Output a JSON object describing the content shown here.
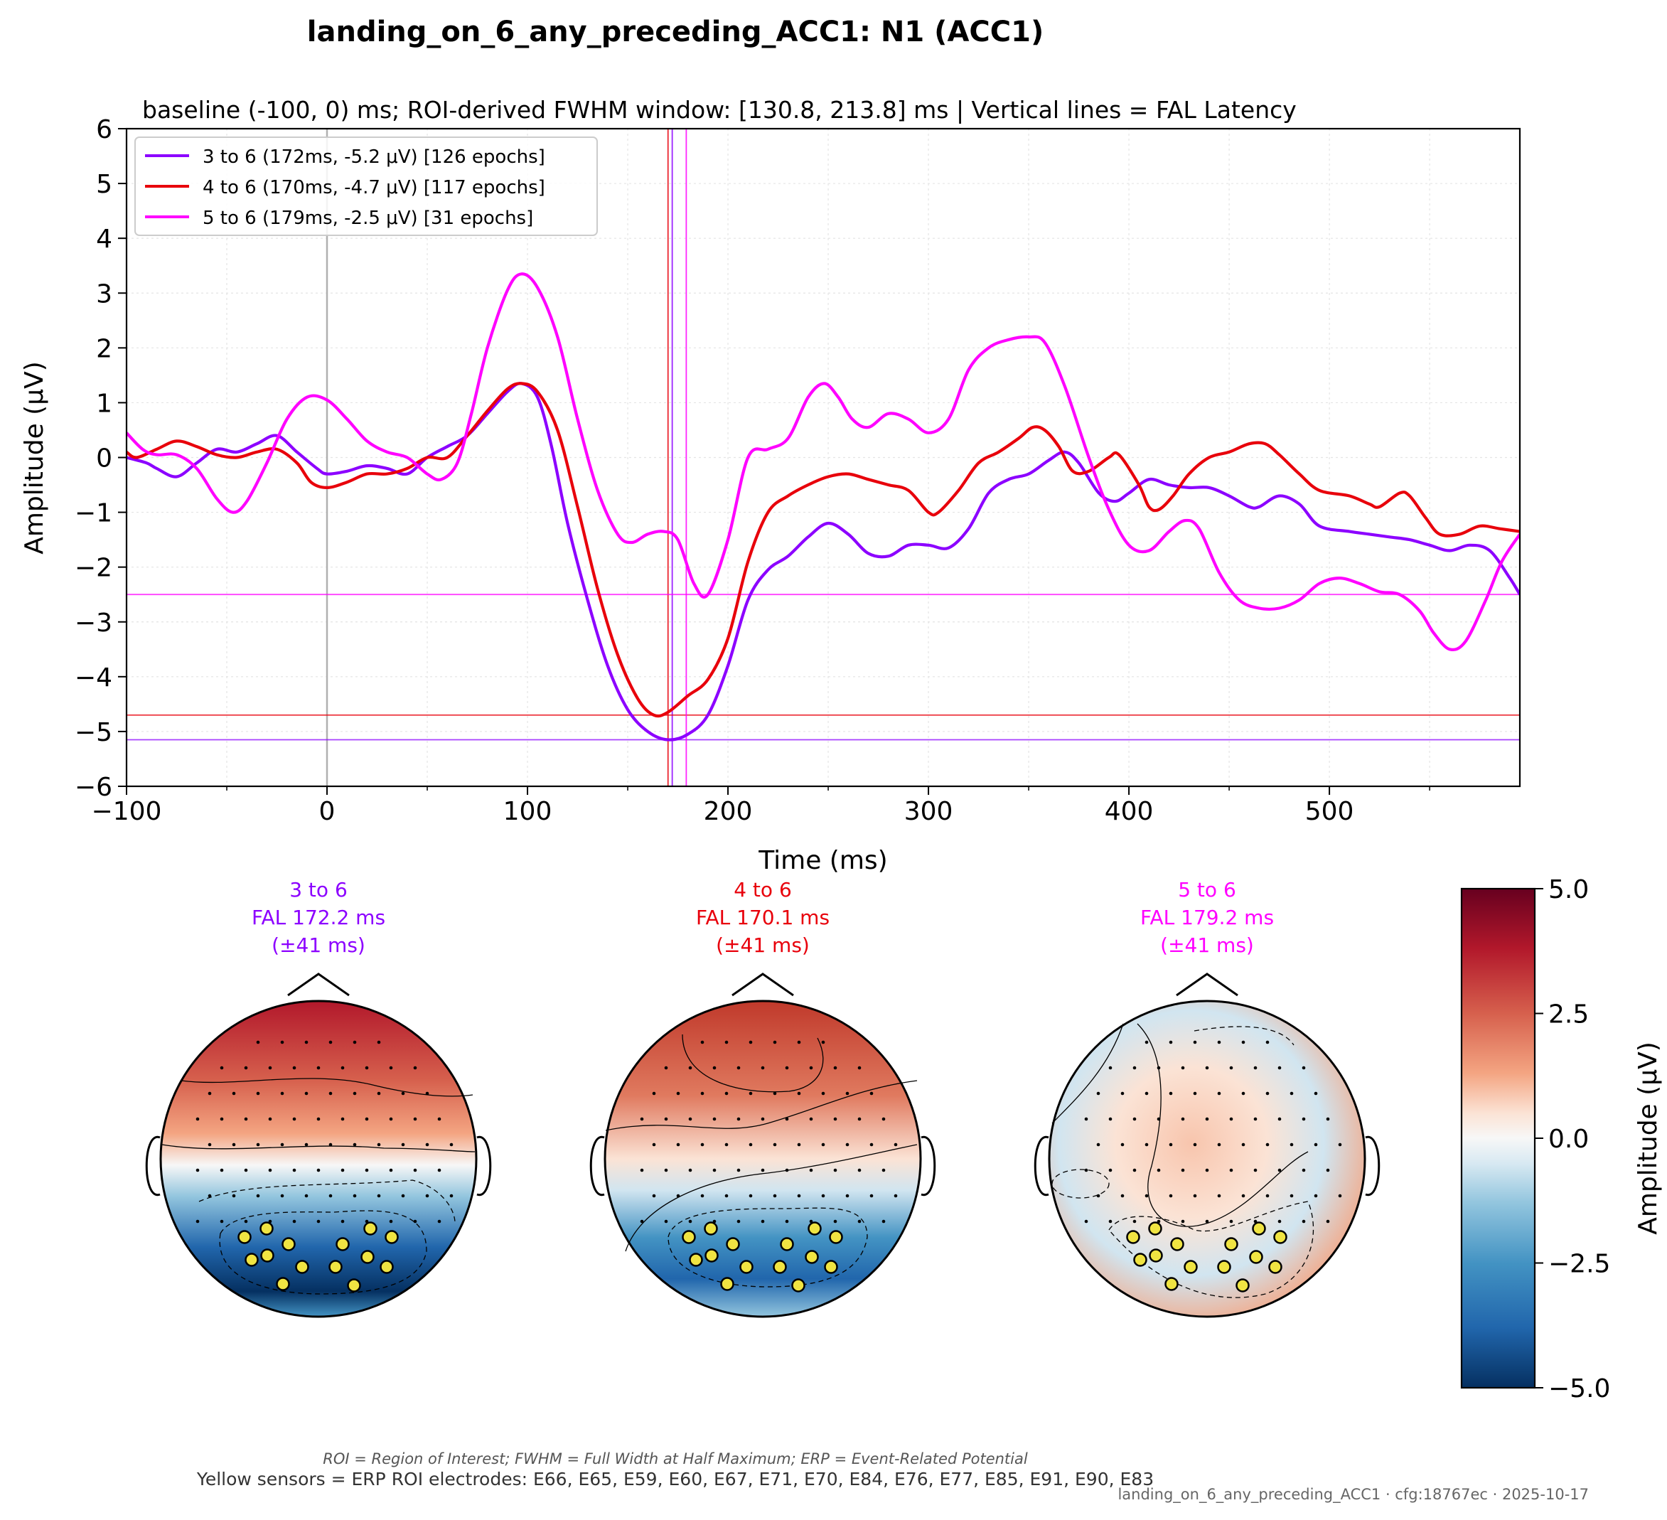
{
  "title": "landing_on_6_any_preceding_ACC1: N1 (ACC1)",
  "footnotes": {
    "definitions": "ROI = Region of Interest; FWHM = Full Width at Half Maximum; ERP = Event-Related Potential",
    "roi_electrodes": "Yellow sensors = ERP ROI electrodes: E66, E65, E59, E60, E67, E71, E70, E84, E76, E77, E85, E91, E90, E83",
    "config": "landing_on_6_any_preceding_ACC1 · cfg:18767ec · 2025-10-17"
  },
  "chart_data": [
    {
      "type": "line",
      "title": "baseline (-100, 0) ms; ROI-derived FWHM window: [130.8, 213.8] ms | Vertical lines = FAL Latency",
      "xlabel": "Time (ms)",
      "ylabel": "Amplitude (μV)",
      "xlim": [
        -100,
        595
      ],
      "ylim": [
        -6,
        6
      ],
      "xticks": [
        -100,
        0,
        100,
        200,
        300,
        400,
        500
      ],
      "yticks": [
        -6,
        -5,
        -4,
        -3,
        -2,
        -1,
        0,
        1,
        2,
        3,
        4,
        5,
        6
      ],
      "grid": true,
      "legend_position": "top-left",
      "baseline_marker_x": 0,
      "series": [
        {
          "name": "3 to 6 (172ms, -5.2 μV) [126 epochs]",
          "color": "#8c00ff",
          "fal_latency_ms": 172.2,
          "fal_amplitude": -5.15,
          "points": [
            [
              -100,
              0
            ],
            [
              -90,
              -0.1
            ],
            [
              -85,
              -0.2
            ],
            [
              -75,
              -0.35
            ],
            [
              -65,
              -0.1
            ],
            [
              -55,
              0.15
            ],
            [
              -45,
              0.1
            ],
            [
              -35,
              0.25
            ],
            [
              -25,
              0.4
            ],
            [
              -15,
              0.1
            ],
            [
              -5,
              -0.2
            ],
            [
              0,
              -0.3
            ],
            [
              10,
              -0.25
            ],
            [
              20,
              -0.15
            ],
            [
              30,
              -0.2
            ],
            [
              40,
              -0.3
            ],
            [
              50,
              0
            ],
            [
              60,
              0.2
            ],
            [
              70,
              0.4
            ],
            [
              80,
              0.8
            ],
            [
              90,
              1.2
            ],
            [
              97,
              1.35
            ],
            [
              105,
              1.1
            ],
            [
              112,
              0.2
            ],
            [
              120,
              -1.2
            ],
            [
              130,
              -2.6
            ],
            [
              140,
              -3.8
            ],
            [
              150,
              -4.6
            ],
            [
              160,
              -5.0
            ],
            [
              170,
              -5.15
            ],
            [
              180,
              -5.05
            ],
            [
              190,
              -4.7
            ],
            [
              200,
              -3.8
            ],
            [
              210,
              -2.6
            ],
            [
              220,
              -2.05
            ],
            [
              230,
              -1.8
            ],
            [
              240,
              -1.45
            ],
            [
              250,
              -1.2
            ],
            [
              260,
              -1.4
            ],
            [
              270,
              -1.75
            ],
            [
              280,
              -1.8
            ],
            [
              290,
              -1.6
            ],
            [
              300,
              -1.6
            ],
            [
              310,
              -1.65
            ],
            [
              320,
              -1.3
            ],
            [
              330,
              -0.65
            ],
            [
              340,
              -0.4
            ],
            [
              350,
              -0.3
            ],
            [
              360,
              -0.05
            ],
            [
              368,
              0.1
            ],
            [
              375,
              -0.1
            ],
            [
              385,
              -0.65
            ],
            [
              393,
              -0.8
            ],
            [
              400,
              -0.65
            ],
            [
              410,
              -0.4
            ],
            [
              420,
              -0.5
            ],
            [
              430,
              -0.55
            ],
            [
              440,
              -0.55
            ],
            [
              450,
              -0.7
            ],
            [
              460,
              -0.9
            ],
            [
              465,
              -0.9
            ],
            [
              475,
              -0.7
            ],
            [
              485,
              -0.85
            ],
            [
              495,
              -1.25
            ],
            [
              510,
              -1.35
            ],
            [
              520,
              -1.4
            ],
            [
              530,
              -1.45
            ],
            [
              540,
              -1.5
            ],
            [
              550,
              -1.6
            ],
            [
              560,
              -1.7
            ],
            [
              570,
              -1.6
            ],
            [
              580,
              -1.7
            ],
            [
              590,
              -2.2
            ],
            [
              595,
              -2.5
            ]
          ]
        },
        {
          "name": "4 to 6 (170ms, -4.7 μV) [117 epochs]",
          "color": "#e8000b",
          "fal_latency_ms": 170.1,
          "fal_amplitude": -4.7,
          "points": [
            [
              -100,
              0.1
            ],
            [
              -95,
              0
            ],
            [
              -85,
              0.15
            ],
            [
              -75,
              0.3
            ],
            [
              -65,
              0.2
            ],
            [
              -55,
              0.05
            ],
            [
              -45,
              0
            ],
            [
              -35,
              0.1
            ],
            [
              -25,
              0.15
            ],
            [
              -15,
              -0.1
            ],
            [
              -8,
              -0.45
            ],
            [
              0,
              -0.55
            ],
            [
              10,
              -0.45
            ],
            [
              20,
              -0.3
            ],
            [
              30,
              -0.3
            ],
            [
              40,
              -0.2
            ],
            [
              50,
              0
            ],
            [
              60,
              0
            ],
            [
              70,
              0.4
            ],
            [
              80,
              0.85
            ],
            [
              90,
              1.25
            ],
            [
              97,
              1.35
            ],
            [
              105,
              1.2
            ],
            [
              115,
              0.5
            ],
            [
              125,
              -0.9
            ],
            [
              135,
              -2.4
            ],
            [
              145,
              -3.6
            ],
            [
              155,
              -4.4
            ],
            [
              163,
              -4.7
            ],
            [
              170,
              -4.65
            ],
            [
              180,
              -4.35
            ],
            [
              190,
              -4.05
            ],
            [
              200,
              -3.3
            ],
            [
              210,
              -1.9
            ],
            [
              220,
              -1.0
            ],
            [
              230,
              -0.7
            ],
            [
              240,
              -0.5
            ],
            [
              250,
              -0.35
            ],
            [
              260,
              -0.3
            ],
            [
              270,
              -0.4
            ],
            [
              280,
              -0.5
            ],
            [
              290,
              -0.6
            ],
            [
              300,
              -1.0
            ],
            [
              305,
              -1.0
            ],
            [
              315,
              -0.6
            ],
            [
              325,
              -0.1
            ],
            [
              335,
              0.1
            ],
            [
              345,
              0.35
            ],
            [
              352,
              0.55
            ],
            [
              358,
              0.5
            ],
            [
              365,
              0.2
            ],
            [
              372,
              -0.25
            ],
            [
              380,
              -0.25
            ],
            [
              390,
              0
            ],
            [
              395,
              0.05
            ],
            [
              405,
              -0.5
            ],
            [
              410,
              -0.9
            ],
            [
              415,
              -0.95
            ],
            [
              422,
              -0.7
            ],
            [
              430,
              -0.3
            ],
            [
              440,
              0
            ],
            [
              450,
              0.1
            ],
            [
              460,
              0.25
            ],
            [
              468,
              0.25
            ],
            [
              475,
              0.05
            ],
            [
              485,
              -0.3
            ],
            [
              495,
              -0.6
            ],
            [
              510,
              -0.7
            ],
            [
              520,
              -0.85
            ],
            [
              525,
              -0.9
            ],
            [
              535,
              -0.65
            ],
            [
              540,
              -0.7
            ],
            [
              548,
              -1.1
            ],
            [
              555,
              -1.4
            ],
            [
              565,
              -1.4
            ],
            [
              575,
              -1.25
            ],
            [
              585,
              -1.3
            ],
            [
              595,
              -1.35
            ]
          ]
        },
        {
          "name": "5 to 6 (179ms, -2.5 μV) [31 epochs]",
          "color": "#ff00ff",
          "fal_latency_ms": 179.2,
          "fal_amplitude": -2.5,
          "points": [
            [
              -100,
              0.45
            ],
            [
              -92,
              0.15
            ],
            [
              -85,
              0.05
            ],
            [
              -75,
              0.05
            ],
            [
              -65,
              -0.2
            ],
            [
              -55,
              -0.75
            ],
            [
              -47,
              -1.0
            ],
            [
              -40,
              -0.8
            ],
            [
              -30,
              -0.1
            ],
            [
              -20,
              0.7
            ],
            [
              -10,
              1.1
            ],
            [
              0,
              1.05
            ],
            [
              10,
              0.7
            ],
            [
              20,
              0.3
            ],
            [
              30,
              0.1
            ],
            [
              40,
              0
            ],
            [
              50,
              -0.3
            ],
            [
              57,
              -0.4
            ],
            [
              65,
              -0.1
            ],
            [
              72,
              0.8
            ],
            [
              80,
              2.0
            ],
            [
              90,
              3.05
            ],
            [
              97,
              3.35
            ],
            [
              105,
              3.1
            ],
            [
              115,
              2.2
            ],
            [
              125,
              0.7
            ],
            [
              135,
              -0.6
            ],
            [
              145,
              -1.4
            ],
            [
              152,
              -1.55
            ],
            [
              160,
              -1.4
            ],
            [
              168,
              -1.35
            ],
            [
              175,
              -1.5
            ],
            [
              183,
              -2.3
            ],
            [
              190,
              -2.5
            ],
            [
              200,
              -1.5
            ],
            [
              210,
              0
            ],
            [
              220,
              0.15
            ],
            [
              230,
              0.35
            ],
            [
              240,
              1.1
            ],
            [
              248,
              1.35
            ],
            [
              255,
              1.1
            ],
            [
              262,
              0.7
            ],
            [
              270,
              0.55
            ],
            [
              280,
              0.8
            ],
            [
              290,
              0.7
            ],
            [
              300,
              0.45
            ],
            [
              310,
              0.7
            ],
            [
              320,
              1.6
            ],
            [
              330,
              2.0
            ],
            [
              340,
              2.15
            ],
            [
              350,
              2.2
            ],
            [
              358,
              2.1
            ],
            [
              368,
              1.3
            ],
            [
              380,
              0
            ],
            [
              390,
              -0.95
            ],
            [
              400,
              -1.6
            ],
            [
              410,
              -1.7
            ],
            [
              420,
              -1.35
            ],
            [
              428,
              -1.15
            ],
            [
              435,
              -1.3
            ],
            [
              445,
              -2.1
            ],
            [
              455,
              -2.6
            ],
            [
              465,
              -2.75
            ],
            [
              475,
              -2.75
            ],
            [
              485,
              -2.6
            ],
            [
              495,
              -2.3
            ],
            [
              505,
              -2.2
            ],
            [
              515,
              -2.3
            ],
            [
              525,
              -2.45
            ],
            [
              535,
              -2.5
            ],
            [
              545,
              -2.8
            ],
            [
              552,
              -3.2
            ],
            [
              560,
              -3.5
            ],
            [
              568,
              -3.35
            ],
            [
              578,
              -2.6
            ],
            [
              586,
              -1.9
            ],
            [
              595,
              -1.4
            ]
          ]
        }
      ]
    },
    {
      "type": "heatmap",
      "description_kind": "topographic scalp maps",
      "colorbar": {
        "label": "Amplitude (μV)",
        "min": -5.0,
        "max": 5.0,
        "ticks": [
          "5.0",
          "2.5",
          "0.0",
          "−2.5",
          "−5.0"
        ],
        "colormap": "RdBu_r"
      },
      "maps": [
        {
          "title_line1": "3 to 6",
          "title_line2": "FAL 172.2 ms",
          "title_line3": "(±41 ms)",
          "color": "#8c00ff"
        },
        {
          "title_line1": "4 to 6",
          "title_line2": "FAL 170.1 ms",
          "title_line3": "(±41 ms)",
          "color": "#e8000b"
        },
        {
          "title_line1": "5 to 6",
          "title_line2": "FAL 179.2 ms",
          "title_line3": "(±41 ms)",
          "color": "#ff00ff"
        }
      ]
    }
  ]
}
